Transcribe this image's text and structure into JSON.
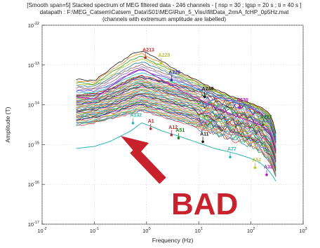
{
  "figure": {
    "title_lines": [
      "[Smooth span=5] Stacked spectrum of MEG filtered data - 246 channels - [ nsp = 30 ; lgsp = 20 s ; ti = 40 s ]",
      "datapath : F:\\MEG_Catsem\\Catsem_Data\\S01\\MEG\\Run_5_Visu\\filtData_2rmA_fcHP_0p5Hz.mat",
      "(channels with extremum amplitude are labelled)"
    ],
    "annotation_text": "BAD",
    "annotation_color": "#c8232c"
  },
  "chart_data": {
    "type": "line",
    "xlabel": "Frequency (Hz)",
    "ylabel": "Amplitude (T)",
    "xscale": "log",
    "yscale": "log",
    "xlim": [
      0.01,
      1000
    ],
    "ylim": [
      1e-17,
      1e-12
    ],
    "x_ticks": [
      {
        "value": 0.01,
        "base": "10",
        "exp": "-2"
      },
      {
        "value": 0.1,
        "base": "10",
        "exp": "-1"
      },
      {
        "value": 1,
        "base": "10",
        "exp": "0"
      },
      {
        "value": 10,
        "base": "10",
        "exp": "1"
      },
      {
        "value": 100,
        "base": "10",
        "exp": "2"
      },
      {
        "value": 1000,
        "base": "10",
        "exp": "3"
      }
    ],
    "y_ticks": [
      {
        "value": 1e-17,
        "base": "10",
        "exp": "-17"
      },
      {
        "value": 1e-16,
        "base": "10",
        "exp": "-16"
      },
      {
        "value": 1e-15,
        "base": "10",
        "exp": "-15"
      },
      {
        "value": 1e-14,
        "base": "10",
        "exp": "-14"
      },
      {
        "value": 1e-13,
        "base": "10",
        "exp": "-13"
      },
      {
        "value": 1e-12,
        "base": "10",
        "exp": "-12"
      }
    ],
    "grid": true,
    "channel_count": 246,
    "labelled_channels": [
      {
        "name": "A213",
        "freq": 0.95,
        "amp": 2.2e-13,
        "color": "#c0282c"
      },
      {
        "name": "A228",
        "freq": 1.9,
        "amp": 1.6e-13,
        "color": "#c9c020"
      },
      {
        "name": "A229",
        "freq": 3.0,
        "amp": 6e-14,
        "color": "#1c2aa8"
      },
      {
        "name": "A248",
        "freq": 13,
        "amp": 2.3e-14,
        "color": "#111111"
      },
      {
        "name": "A230",
        "freq": 60,
        "amp": 1.2e-14,
        "color": "#b01cb5"
      },
      {
        "name": "A227",
        "freq": 170,
        "amp": 4.5e-15,
        "color": "#1e7a1e"
      },
      {
        "name": "A1",
        "freq": 1.2,
        "amp": 3.6e-15,
        "color": "#c0282c"
      },
      {
        "name": "A12",
        "freq": 3.0,
        "amp": 2.5e-15,
        "color": "#c0282c"
      },
      {
        "name": "A51",
        "freq": 4.1,
        "amp": 2.1e-15,
        "color": "#1e7a1e"
      },
      {
        "name": "A11",
        "freq": 12,
        "amp": 1.7e-15,
        "color": "#111111"
      },
      {
        "name": "A77",
        "freq": 40,
        "amp": 7e-16,
        "color": "#2ab5b5"
      },
      {
        "name": "A132",
        "freq": 0.55,
        "amp": 5e-15,
        "color": "#2ab5b5"
      },
      {
        "name": "A52",
        "freq": 120,
        "amp": 3.8e-16,
        "color": "#c9c020"
      },
      {
        "name": "A32",
        "freq": 200,
        "amp": 2.5e-16,
        "color": "#b01cb5"
      }
    ],
    "envelope": {
      "freqs": [
        0.045,
        0.1,
        0.2,
        0.5,
        0.8,
        1.0,
        2.0,
        5.0,
        10,
        20,
        50,
        100,
        150,
        200,
        250,
        300
      ],
      "max": [
        4.5e-14,
        4e-14,
        8e-14,
        1.8e-13,
        2.3e-13,
        2e-13,
        1.2e-13,
        6e-14,
        4e-14,
        2.5e-14,
        1.5e-14,
        1.1e-14,
        9e-15,
        7e-15,
        5e-15,
        2e-15
      ],
      "upper": [
        1.8e-14,
        1.9e-14,
        2.5e-14,
        4.5e-14,
        5.5e-14,
        5e-14,
        4e-14,
        3e-14,
        2.2e-14,
        1.5e-14,
        1.1e-14,
        8e-15,
        6e-15,
        4.5e-15,
        3e-15,
        1.2e-15
      ],
      "lower": [
        3e-15,
        3.5e-15,
        4.5e-15,
        6e-15,
        7e-15,
        6.5e-15,
        5e-15,
        3.5e-15,
        2.7e-15,
        2e-15,
        1.4e-15,
        1e-15,
        7e-16,
        4.5e-16,
        3e-16,
        1.5e-16
      ],
      "cyan": [
        8e-16,
        9e-16,
        1.2e-15,
        2.2e-15,
        3.5e-15,
        3.2e-15,
        2.2e-15,
        1.5e-15,
        1.1e-15,
        8e-16,
        6e-16,
        4.5e-16,
        3.5e-16,
        2.5e-16,
        1.8e-16,
        1.2e-16
      ]
    }
  }
}
